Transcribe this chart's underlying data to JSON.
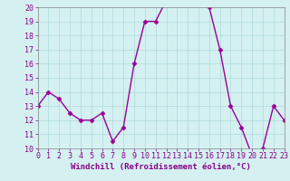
{
  "hours": [
    0,
    1,
    2,
    3,
    4,
    5,
    6,
    7,
    8,
    9,
    10,
    11,
    12,
    13,
    14,
    15,
    16,
    17,
    18,
    19,
    20,
    21,
    22,
    23
  ],
  "values": [
    13,
    14,
    13.5,
    12.5,
    12,
    12,
    12.5,
    10.5,
    11.5,
    16,
    19,
    19,
    20.5,
    20.5,
    20.5,
    20.5,
    20,
    17,
    13,
    11.5,
    9.5,
    10,
    13,
    12
  ],
  "line_color": "#990099",
  "marker": "D",
  "marker_size": 2.5,
  "linewidth": 1.0,
  "bg_color": "#d4f0f0",
  "grid_color": "#b0d8d8",
  "xlabel": "Windchill (Refroidissement éolien,°C)",
  "xlabel_color": "#880088",
  "xlabel_fontsize": 6.5,
  "tick_fontsize": 6,
  "tick_color": "#880088",
  "ylim": [
    10,
    20
  ],
  "yticks": [
    10,
    11,
    12,
    13,
    14,
    15,
    16,
    17,
    18,
    19,
    20
  ],
  "xlim": [
    0,
    23
  ],
  "xticks": [
    0,
    1,
    2,
    3,
    4,
    5,
    6,
    7,
    8,
    9,
    10,
    11,
    12,
    13,
    14,
    15,
    16,
    17,
    18,
    19,
    20,
    21,
    22,
    23
  ],
  "spine_color": "#888888"
}
